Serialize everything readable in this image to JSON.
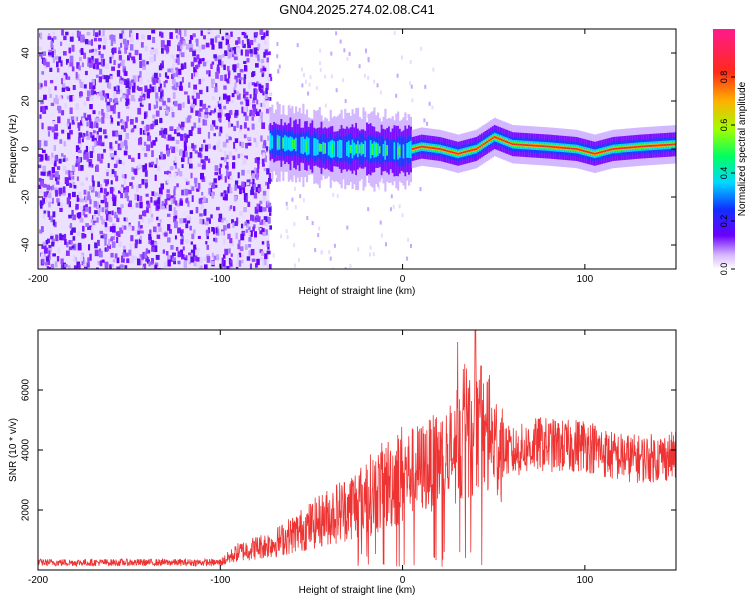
{
  "title": "GN04.2025.274.02.08.C41",
  "chart_data": [
    {
      "type": "heatmap",
      "xlabel": "Height of straight line (km)",
      "ylabel": "Frequency (Hz)",
      "xlim": [
        -200,
        150
      ],
      "ylim": [
        -50,
        50
      ],
      "x_ticks": [
        -200,
        -100,
        0,
        100
      ],
      "y_ticks": [
        -40,
        -20,
        0,
        20,
        40
      ],
      "colorbar": {
        "label": "Normalized spectral amplitude",
        "range": [
          0,
          1
        ],
        "ticks": [
          0.0,
          0.2,
          0.4,
          0.6,
          0.8
        ],
        "tick_labels": [
          "0.0",
          "0.2",
          "0.4",
          "0.6",
          "0.8"
        ],
        "colors": [
          "#ffffff",
          "#6a00ff",
          "#0040ff",
          "#00ffff",
          "#00ff40",
          "#c0ff00",
          "#ffb000",
          "#ff2020",
          "#ff1a8c"
        ]
      },
      "noise_region_x": [
        -200,
        -73
      ],
      "signal_ridge": [
        {
          "x": -73,
          "y": 3
        },
        {
          "x": -60,
          "y": 2
        },
        {
          "x": -40,
          "y": 0
        },
        {
          "x": -20,
          "y": 0
        },
        {
          "x": 0,
          "y": -1
        },
        {
          "x": 10,
          "y": 1
        },
        {
          "x": 20,
          "y": 0
        },
        {
          "x": 30,
          "y": -2
        },
        {
          "x": 40,
          "y": 0
        },
        {
          "x": 50,
          "y": 5
        },
        {
          "x": 60,
          "y": 2
        },
        {
          "x": 80,
          "y": 1
        },
        {
          "x": 95,
          "y": 0
        },
        {
          "x": 105,
          "y": -2
        },
        {
          "x": 115,
          "y": 0
        },
        {
          "x": 130,
          "y": 1
        },
        {
          "x": 150,
          "y": 2
        }
      ]
    },
    {
      "type": "line",
      "xlabel": "Height of straight line (km)",
      "ylabel": "SNR (10 * v/v)",
      "xlim": [
        -200,
        150
      ],
      "ylim": [
        0,
        8000
      ],
      "x_ticks": [
        -200,
        -100,
        0,
        100
      ],
      "y_ticks": [
        2000,
        4000,
        6000
      ],
      "series": [
        {
          "color": "#ee3333",
          "envelope": [
            {
              "x": -200,
              "y": 250
            },
            {
              "x": -100,
              "y": 250
            },
            {
              "x": -90,
              "y": 600
            },
            {
              "x": -70,
              "y": 900
            },
            {
              "x": -50,
              "y": 1500
            },
            {
              "x": -30,
              "y": 2100
            },
            {
              "x": -15,
              "y": 2600
            },
            {
              "x": 0,
              "y": 3200
            },
            {
              "x": 15,
              "y": 3500
            },
            {
              "x": 30,
              "y": 4000
            },
            {
              "x": 40,
              "y": 4600
            },
            {
              "x": 50,
              "y": 4200
            },
            {
              "x": 60,
              "y": 3900
            },
            {
              "x": 75,
              "y": 4200
            },
            {
              "x": 90,
              "y": 4100
            },
            {
              "x": 100,
              "y": 4200
            },
            {
              "x": 115,
              "y": 3800
            },
            {
              "x": 130,
              "y": 3700
            },
            {
              "x": 150,
              "y": 3800
            }
          ],
          "peaks": [
            {
              "x": 30,
              "y": 7600
            },
            {
              "x": 40,
              "y": 8000
            },
            {
              "x": 43,
              "y": 6800
            }
          ]
        }
      ]
    }
  ]
}
